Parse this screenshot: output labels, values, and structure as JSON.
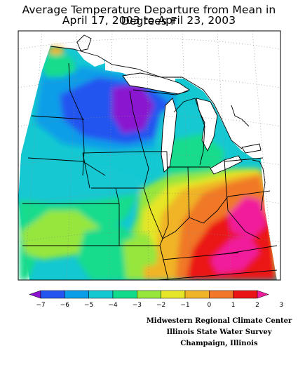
{
  "title": {
    "line1": "Average Temperature Departure from Mean in Degrees F",
    "line2": "April 17, 2003 to April 23, 2003"
  },
  "legend": {
    "ticks": [
      "-7",
      "-6",
      "-5",
      "-4",
      "-3",
      "-2",
      "-1",
      "0",
      "1",
      "2",
      "3"
    ],
    "colors": [
      "#8a12cf",
      "#2455f0",
      "#0a9ee8",
      "#14c8d2",
      "#12dc8c",
      "#96e63c",
      "#e6e628",
      "#f0b428",
      "#f07828",
      "#eb1414",
      "#f01e9b"
    ]
  },
  "credits": {
    "line1": "Midwestern Regional Climate Center",
    "line2": "Illinois State Water Survey",
    "line3": "Champaign, Illinois"
  }
}
